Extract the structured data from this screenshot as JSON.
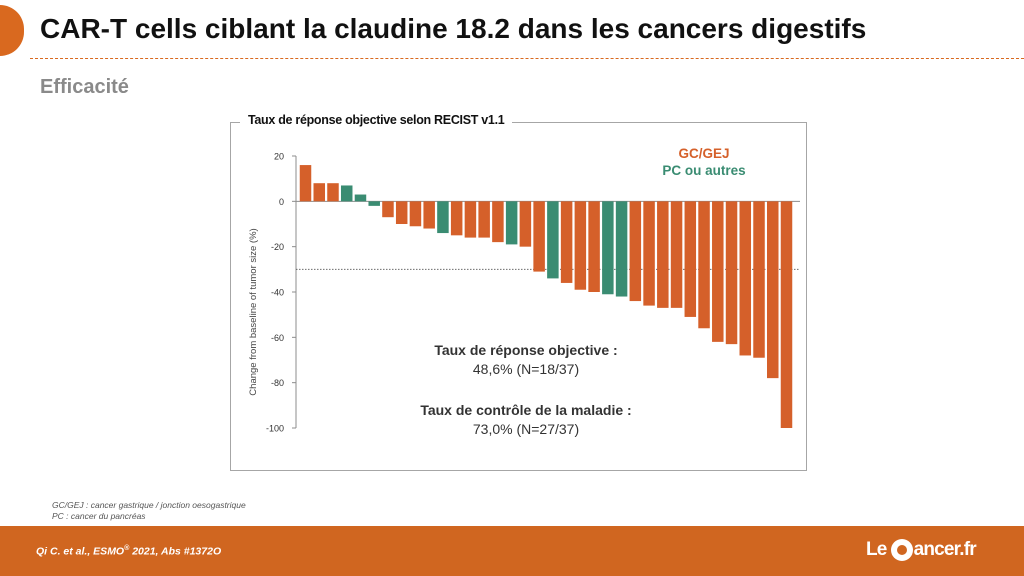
{
  "slide": {
    "title": "CAR-T cells ciblant la claudine 18.2 dans les cancers digestifs",
    "section": "Efficacité"
  },
  "colors": {
    "accent": "#d9691f",
    "gc_gej": "#d5602a",
    "pc_other": "#3a8c72",
    "footer": "#d06620"
  },
  "chart_data": {
    "type": "bar",
    "subtype": "waterfall",
    "title": "Taux de réponse objective selon RECIST v1.1",
    "ylabel": "Change from baseline of tumor size (%)",
    "xlabel": "",
    "ylim": [
      -100,
      20
    ],
    "yticks": [
      20,
      0,
      -20,
      -40,
      -60,
      -80,
      -100
    ],
    "threshold": -30,
    "grid": false,
    "legend_position": "top-right",
    "legend": [
      {
        "label": "GC/GEJ",
        "color": "#d5602a"
      },
      {
        "label": "PC ou autres",
        "color": "#3a8c72"
      }
    ],
    "values": [
      16,
      8,
      8,
      7,
      3,
      -2,
      -7,
      -10,
      -11,
      -12,
      -14,
      -15,
      -16,
      -16,
      -18,
      -19,
      -20,
      -31,
      -34,
      -36,
      -39,
      -40,
      -41,
      -42,
      -44,
      -46,
      -47,
      -47,
      -51,
      -56,
      -62,
      -63,
      -68,
      -69,
      -78,
      -100
    ],
    "groups": [
      "GC/GEJ",
      "GC/GEJ",
      "GC/GEJ",
      "PC ou autres",
      "PC ou autres",
      "PC ou autres",
      "GC/GEJ",
      "GC/GEJ",
      "GC/GEJ",
      "GC/GEJ",
      "PC ou autres",
      "GC/GEJ",
      "GC/GEJ",
      "GC/GEJ",
      "GC/GEJ",
      "PC ou autres",
      "GC/GEJ",
      "GC/GEJ",
      "PC ou autres",
      "GC/GEJ",
      "GC/GEJ",
      "GC/GEJ",
      "PC ou autres",
      "PC ou autres",
      "GC/GEJ",
      "GC/GEJ",
      "GC/GEJ",
      "GC/GEJ",
      "GC/GEJ",
      "GC/GEJ",
      "GC/GEJ",
      "GC/GEJ",
      "GC/GEJ",
      "GC/GEJ",
      "GC/GEJ",
      "GC/GEJ"
    ],
    "annotations": [
      {
        "label": "Taux de réponse objective :",
        "value": "48,6% (N=18/37)"
      },
      {
        "label": "Taux de contrôle de la maladie :",
        "value": "73,0% (N=27/37)"
      }
    ]
  },
  "footnotes": [
    "GC/GEJ : cancer gastrique / jonction oesogastrique",
    "PC : cancer du pancréas"
  ],
  "citation": {
    "prefix": "Qi C. et al.,  ESMO",
    "sup": "®",
    "suffix": " 2021, Abs #1372O"
  },
  "logo": {
    "left": "Le",
    "right": "ancer.fr"
  }
}
